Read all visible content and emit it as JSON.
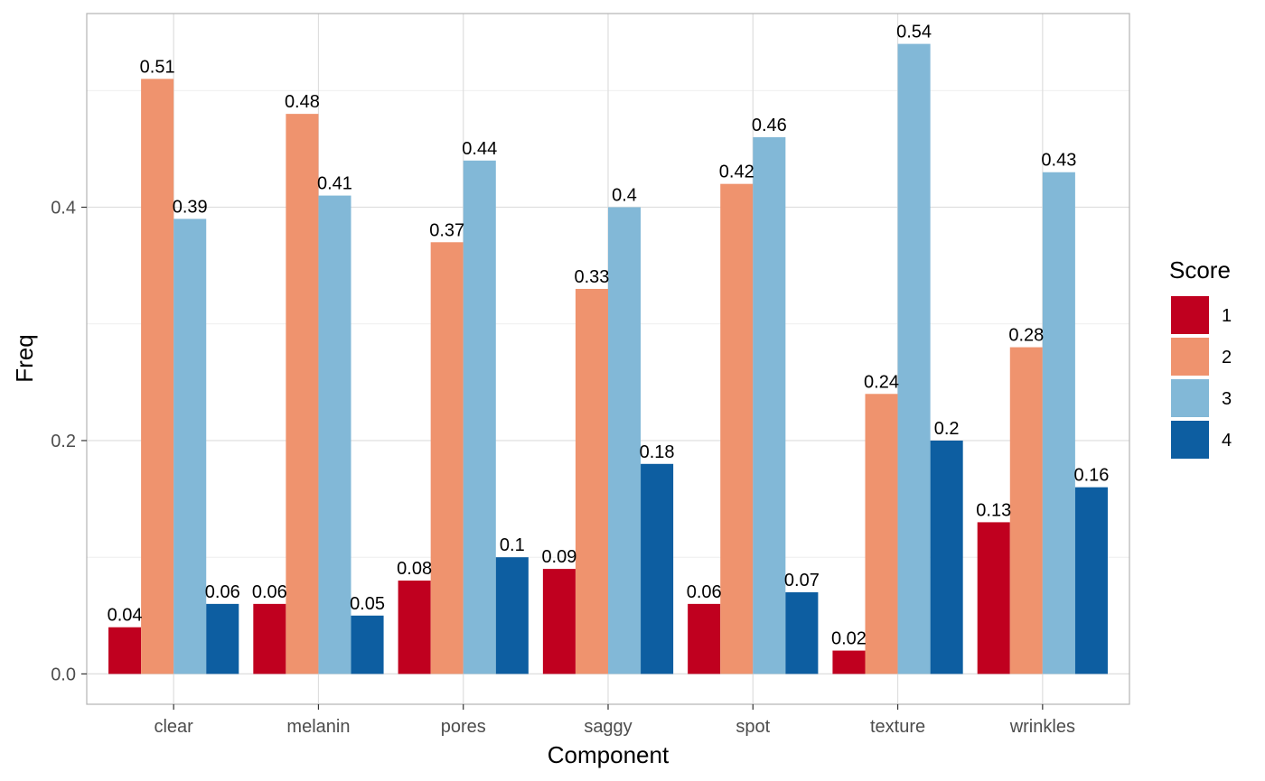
{
  "chart_data": {
    "type": "bar",
    "xlabel": "Component",
    "ylabel": "Freq",
    "categories": [
      "clear",
      "melanin",
      "pores",
      "saggy",
      "spot",
      "texture",
      "wrinkles"
    ],
    "series": [
      {
        "name": "1",
        "color": "#c0001f",
        "values": [
          0.04,
          0.06,
          0.08,
          0.09,
          0.06,
          0.02,
          0.13
        ]
      },
      {
        "name": "2",
        "color": "#ef936e",
        "values": [
          0.51,
          0.48,
          0.37,
          0.33,
          0.42,
          0.24,
          0.28
        ]
      },
      {
        "name": "3",
        "color": "#82b8d7",
        "values": [
          0.39,
          0.41,
          0.44,
          0.4,
          0.46,
          0.54,
          0.43
        ]
      },
      {
        "name": "4",
        "color": "#0d5ea1",
        "values": [
          0.06,
          0.05,
          0.1,
          0.18,
          0.07,
          0.2,
          0.16
        ]
      }
    ],
    "data_labels": [
      [
        "0.04",
        "0.06",
        "0.08",
        "0.09",
        "0.06",
        "0.02",
        "0.13"
      ],
      [
        "0.51",
        "0.48",
        "0.37",
        "0.33",
        "0.42",
        "0.24",
        "0.28"
      ],
      [
        "0.39",
        "0.41",
        "0.44",
        "0.4",
        "0.46",
        "0.54",
        "0.43"
      ],
      [
        "0.06",
        "0.05",
        "0.1",
        "0.18",
        "0.07",
        "0.2",
        "0.16"
      ]
    ],
    "ylim": [
      -0.026,
      0.566
    ],
    "yticks": [
      0.0,
      0.2,
      0.4
    ],
    "ytick_labels": [
      "0.0",
      "0.2",
      "0.4"
    ],
    "y_minor_gridlines": [
      0.1,
      0.3,
      0.5
    ],
    "grid": true,
    "legend": {
      "title": "Score",
      "position": "right"
    }
  }
}
